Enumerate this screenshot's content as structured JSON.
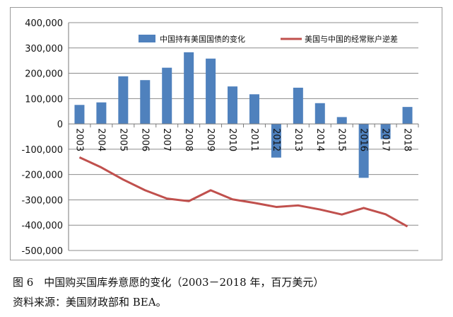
{
  "caption": {
    "title": "图 6　中国购买国库券意愿的变化（2003－2018 年，百万美元）",
    "source": "资料来源：美国财政部和 BEA。"
  },
  "chart_data": {
    "type": "bar",
    "categories": [
      "2003",
      "2004",
      "2005",
      "2006",
      "2007",
      "2008",
      "2009",
      "2010",
      "2011",
      "2012",
      "2013",
      "2014",
      "2015",
      "2016",
      "2017",
      "2018"
    ],
    "series": [
      {
        "name": "中国持有美国国债的变化",
        "type": "bar",
        "color": "#4F81BD",
        "values": [
          75000,
          85000,
          188000,
          173000,
          222000,
          283000,
          258000,
          148000,
          117000,
          -133000,
          143000,
          82000,
          27000,
          -213000,
          -60000,
          67000
        ]
      },
      {
        "name": "美国与中国的经常账户逆差",
        "type": "line",
        "color": "#C0504D",
        "values": [
          -132000,
          -172000,
          -220000,
          -262000,
          -295000,
          -305000,
          -262000,
          -298000,
          -312000,
          -328000,
          -322000,
          -338000,
          -358000,
          -332000,
          -357000,
          -405000
        ]
      }
    ],
    "ylim": [
      -500000,
      400000
    ],
    "yticks": [
      -500000,
      -400000,
      -300000,
      -200000,
      -100000,
      0,
      100000,
      200000,
      300000,
      400000
    ],
    "ytick_labels": [
      "-500,000",
      "-400,000",
      "-300,000",
      "-200,000",
      "-100,000",
      "0",
      "100,000",
      "200,000",
      "300,000",
      "400,000"
    ],
    "grid": true,
    "legend_position": "top-right"
  }
}
